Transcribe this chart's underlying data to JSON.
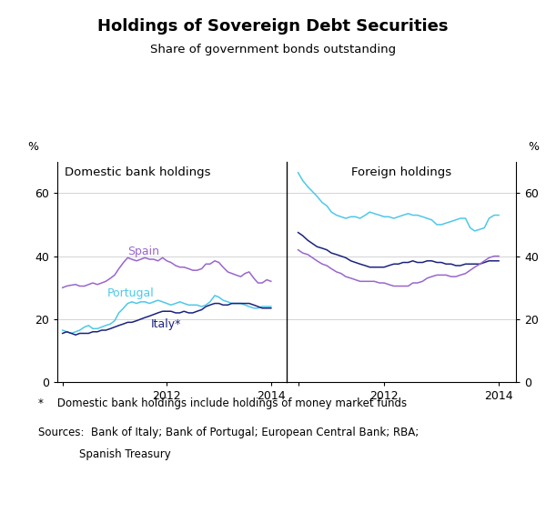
{
  "title": "Holdings of Sovereign Debt Securities",
  "subtitle": "Share of government bonds outstanding",
  "footnote": "*    Domestic bank holdings include holdings of money market funds",
  "sources_line1": "Sources:  Bank of Italy; Bank of Portugal; European Central Bank; RBA;",
  "sources_line2": "            Spanish Treasury",
  "left_panel_title": "Domestic bank holdings",
  "right_panel_title": "Foreign holdings",
  "ylabel_left": "%",
  "ylabel_right": "%",
  "ylim": [
    0,
    70
  ],
  "yticks": [
    0,
    20,
    40,
    60
  ],
  "colors": {
    "spain": "#9966CC",
    "portugal": "#4EC8E8",
    "italy": "#1a237e"
  },
  "left_spain": {
    "x": [
      2010.0,
      2010.08,
      2010.17,
      2010.25,
      2010.33,
      2010.42,
      2010.5,
      2010.58,
      2010.67,
      2010.75,
      2010.83,
      2010.92,
      2011.0,
      2011.08,
      2011.17,
      2011.25,
      2011.33,
      2011.42,
      2011.5,
      2011.58,
      2011.67,
      2011.75,
      2011.83,
      2011.92,
      2012.0,
      2012.08,
      2012.17,
      2012.25,
      2012.33,
      2012.42,
      2012.5,
      2012.58,
      2012.67,
      2012.75,
      2012.83,
      2012.92,
      2013.0,
      2013.08,
      2013.17,
      2013.25,
      2013.33,
      2013.42,
      2013.5,
      2013.58,
      2013.67,
      2013.75,
      2013.83,
      2013.92,
      2014.0
    ],
    "y": [
      30.0,
      30.5,
      30.8,
      31.0,
      30.5,
      30.5,
      31.0,
      31.5,
      31.0,
      31.5,
      32.0,
      33.0,
      34.0,
      36.0,
      38.0,
      39.5,
      39.0,
      38.5,
      39.0,
      39.5,
      39.0,
      39.0,
      38.5,
      39.5,
      38.5,
      38.0,
      37.0,
      36.5,
      36.5,
      36.0,
      35.5,
      35.5,
      36.0,
      37.5,
      37.5,
      38.5,
      38.0,
      36.5,
      35.0,
      34.5,
      34.0,
      33.5,
      34.5,
      35.0,
      33.0,
      31.5,
      31.5,
      32.5,
      32.0
    ]
  },
  "left_portugal": {
    "x": [
      2010.0,
      2010.08,
      2010.17,
      2010.25,
      2010.33,
      2010.42,
      2010.5,
      2010.58,
      2010.67,
      2010.75,
      2010.83,
      2010.92,
      2011.0,
      2011.08,
      2011.17,
      2011.25,
      2011.33,
      2011.42,
      2011.5,
      2011.58,
      2011.67,
      2011.75,
      2011.83,
      2011.92,
      2012.0,
      2012.08,
      2012.17,
      2012.25,
      2012.33,
      2012.42,
      2012.5,
      2012.58,
      2012.67,
      2012.75,
      2012.83,
      2012.92,
      2013.0,
      2013.08,
      2013.17,
      2013.25,
      2013.33,
      2013.42,
      2013.5,
      2013.58,
      2013.67,
      2013.75,
      2013.83,
      2013.92,
      2014.0
    ],
    "y": [
      16.5,
      16.0,
      15.5,
      16.0,
      16.5,
      17.5,
      18.0,
      17.0,
      17.0,
      17.5,
      18.0,
      18.5,
      19.5,
      22.0,
      23.5,
      25.0,
      25.5,
      25.0,
      25.5,
      25.5,
      25.0,
      25.5,
      26.0,
      25.5,
      25.0,
      24.5,
      25.0,
      25.5,
      25.0,
      24.5,
      24.5,
      24.5,
      24.0,
      24.5,
      25.5,
      27.5,
      27.0,
      26.0,
      25.5,
      25.0,
      25.0,
      25.0,
      24.5,
      24.0,
      23.5,
      23.5,
      24.0,
      24.0,
      24.0
    ]
  },
  "left_italy": {
    "x": [
      2010.0,
      2010.08,
      2010.17,
      2010.25,
      2010.33,
      2010.42,
      2010.5,
      2010.58,
      2010.67,
      2010.75,
      2010.83,
      2010.92,
      2011.0,
      2011.08,
      2011.17,
      2011.25,
      2011.33,
      2011.42,
      2011.5,
      2011.58,
      2011.67,
      2011.75,
      2011.83,
      2011.92,
      2012.0,
      2012.08,
      2012.17,
      2012.25,
      2012.33,
      2012.42,
      2012.5,
      2012.58,
      2012.67,
      2012.75,
      2012.83,
      2012.92,
      2013.0,
      2013.08,
      2013.17,
      2013.25,
      2013.33,
      2013.42,
      2013.5,
      2013.58,
      2013.67,
      2013.75,
      2013.83,
      2013.92,
      2014.0
    ],
    "y": [
      15.5,
      16.0,
      15.5,
      15.0,
      15.5,
      15.5,
      15.5,
      16.0,
      16.0,
      16.5,
      16.5,
      17.0,
      17.5,
      18.0,
      18.5,
      19.0,
      19.0,
      19.5,
      20.0,
      20.5,
      21.0,
      21.5,
      22.0,
      22.5,
      22.5,
      22.5,
      22.0,
      22.0,
      22.5,
      22.0,
      22.0,
      22.5,
      23.0,
      24.0,
      24.5,
      25.0,
      25.0,
      24.5,
      24.5,
      25.0,
      25.0,
      25.0,
      25.0,
      25.0,
      24.5,
      24.0,
      23.5,
      23.5,
      23.5
    ]
  },
  "right_portugal": {
    "x": [
      2010.5,
      2010.58,
      2010.67,
      2010.75,
      2010.83,
      2010.92,
      2011.0,
      2011.08,
      2011.17,
      2011.25,
      2011.33,
      2011.42,
      2011.5,
      2011.58,
      2011.67,
      2011.75,
      2011.83,
      2011.92,
      2012.0,
      2012.08,
      2012.17,
      2012.25,
      2012.33,
      2012.42,
      2012.5,
      2012.58,
      2012.67,
      2012.75,
      2012.83,
      2012.92,
      2013.0,
      2013.08,
      2013.17,
      2013.25,
      2013.33,
      2013.42,
      2013.5,
      2013.58,
      2013.67,
      2013.75,
      2013.83,
      2013.92,
      2014.0
    ],
    "y": [
      66.5,
      64.0,
      62.0,
      60.5,
      59.0,
      57.0,
      56.0,
      54.0,
      53.0,
      52.5,
      52.0,
      52.5,
      52.5,
      52.0,
      53.0,
      54.0,
      53.5,
      53.0,
      52.5,
      52.5,
      52.0,
      52.5,
      53.0,
      53.5,
      53.0,
      53.0,
      52.5,
      52.0,
      51.5,
      50.0,
      50.0,
      50.5,
      51.0,
      51.5,
      52.0,
      52.0,
      49.0,
      48.0,
      48.5,
      49.0,
      52.0,
      53.0,
      53.0
    ]
  },
  "right_italy": {
    "x": [
      2010.5,
      2010.58,
      2010.67,
      2010.75,
      2010.83,
      2010.92,
      2011.0,
      2011.08,
      2011.17,
      2011.25,
      2011.33,
      2011.42,
      2011.5,
      2011.58,
      2011.67,
      2011.75,
      2011.83,
      2011.92,
      2012.0,
      2012.08,
      2012.17,
      2012.25,
      2012.33,
      2012.42,
      2012.5,
      2012.58,
      2012.67,
      2012.75,
      2012.83,
      2012.92,
      2013.0,
      2013.08,
      2013.17,
      2013.25,
      2013.33,
      2013.42,
      2013.5,
      2013.58,
      2013.67,
      2013.75,
      2013.83,
      2013.92,
      2014.0
    ],
    "y": [
      47.5,
      46.5,
      45.0,
      44.0,
      43.0,
      42.5,
      42.0,
      41.0,
      40.5,
      40.0,
      39.5,
      38.5,
      38.0,
      37.5,
      37.0,
      36.5,
      36.5,
      36.5,
      36.5,
      37.0,
      37.5,
      37.5,
      38.0,
      38.0,
      38.5,
      38.0,
      38.0,
      38.5,
      38.5,
      38.0,
      38.0,
      37.5,
      37.5,
      37.0,
      37.0,
      37.5,
      37.5,
      37.5,
      37.5,
      38.0,
      38.5,
      38.5,
      38.5
    ]
  },
  "right_spain": {
    "x": [
      2010.5,
      2010.58,
      2010.67,
      2010.75,
      2010.83,
      2010.92,
      2011.0,
      2011.08,
      2011.17,
      2011.25,
      2011.33,
      2011.42,
      2011.5,
      2011.58,
      2011.67,
      2011.75,
      2011.83,
      2011.92,
      2012.0,
      2012.08,
      2012.17,
      2012.25,
      2012.33,
      2012.42,
      2012.5,
      2012.58,
      2012.67,
      2012.75,
      2012.83,
      2012.92,
      2013.0,
      2013.08,
      2013.17,
      2013.25,
      2013.33,
      2013.42,
      2013.5,
      2013.58,
      2013.67,
      2013.75,
      2013.83,
      2013.92,
      2014.0
    ],
    "y": [
      42.0,
      41.0,
      40.5,
      39.5,
      38.5,
      37.5,
      37.0,
      36.0,
      35.0,
      34.5,
      33.5,
      33.0,
      32.5,
      32.0,
      32.0,
      32.0,
      32.0,
      31.5,
      31.5,
      31.0,
      30.5,
      30.5,
      30.5,
      30.5,
      31.5,
      31.5,
      32.0,
      33.0,
      33.5,
      34.0,
      34.0,
      34.0,
      33.5,
      33.5,
      34.0,
      34.5,
      35.5,
      36.5,
      37.5,
      38.5,
      39.5,
      40.0,
      40.0
    ]
  }
}
